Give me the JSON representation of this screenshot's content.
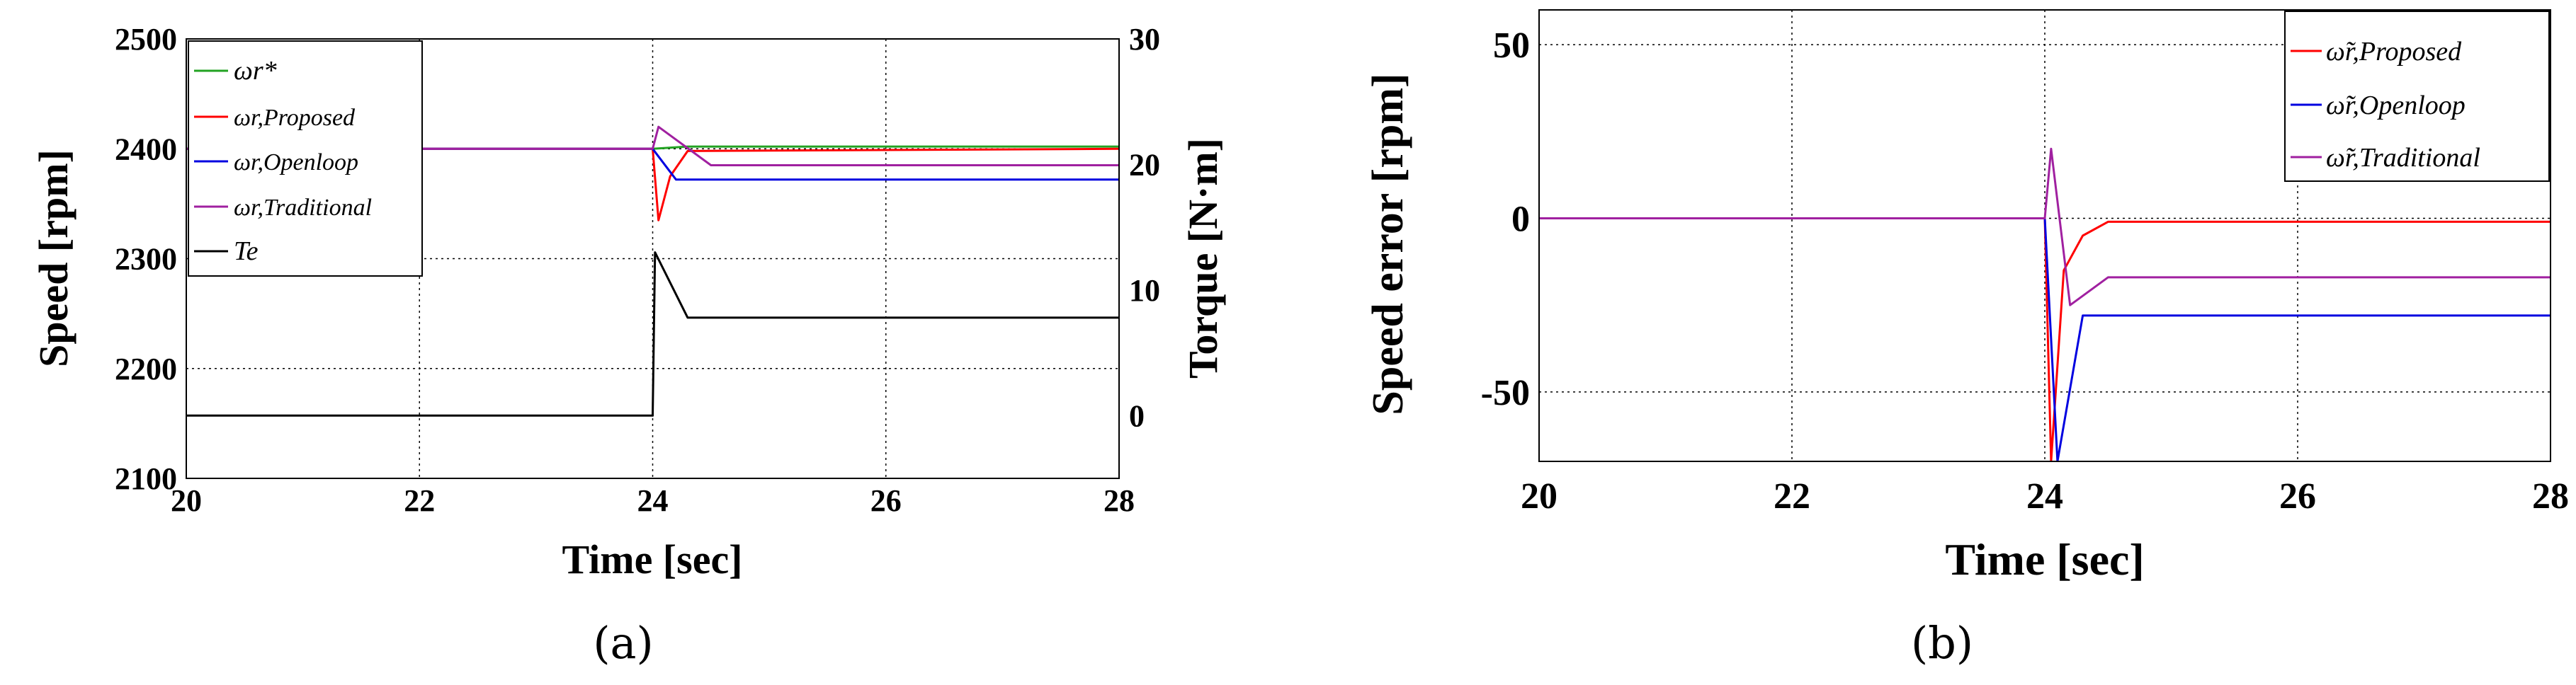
{
  "captions": {
    "a": "(a)",
    "b": "(b)"
  },
  "colors": {
    "ref": "#22a322",
    "proposed": "#ff0000",
    "openloop": "#0000e0",
    "traditional": "#a020a0",
    "torque": "#000000"
  },
  "chart_data": [
    {
      "id": "a",
      "type": "line",
      "xlabel": "Time [sec]",
      "ylabel": "Speed [rpm]",
      "y2label": "Torque [N·m]",
      "xlim": [
        20,
        28
      ],
      "ylim": [
        2100,
        2500
      ],
      "y2lim": [
        -5,
        30
      ],
      "xticks": [
        "20",
        "22",
        "24",
        "26",
        "28"
      ],
      "yticks": [
        "2100",
        "2200",
        "2300",
        "2400",
        "2500"
      ],
      "y2ticks": [
        "0",
        "10",
        "20",
        "30"
      ],
      "grid": true,
      "legend_position": "top-left",
      "legend": [
        "ωr*",
        "ωr,Proposed",
        "ωr,Openloop",
        "ωr,Traditional",
        "Te"
      ],
      "series": [
        {
          "name": "ωr*",
          "color": "ref",
          "axis": "left",
          "x": [
            20,
            24.0,
            24.3,
            28
          ],
          "values": [
            2400,
            2400,
            2402,
            2402
          ]
        },
        {
          "name": "ωr,Proposed",
          "color": "proposed",
          "axis": "left",
          "x": [
            20,
            24.0,
            24.05,
            24.15,
            24.3,
            28
          ],
          "values": [
            2400,
            2400,
            2335,
            2375,
            2398,
            2400
          ]
        },
        {
          "name": "ωr,Openloop",
          "color": "openloop",
          "axis": "left",
          "x": [
            20,
            24.0,
            24.2,
            28
          ],
          "values": [
            2400,
            2400,
            2372,
            2372
          ]
        },
        {
          "name": "ωr,Traditional",
          "color": "traditional",
          "axis": "left",
          "x": [
            20,
            24.0,
            24.05,
            24.5,
            28
          ],
          "values": [
            2400,
            2400,
            2420,
            2385,
            2385
          ]
        },
        {
          "name": "Te",
          "color": "torque",
          "axis": "right",
          "x": [
            20,
            24.0,
            24.02,
            24.3,
            28
          ],
          "values": [
            0,
            0,
            13,
            7.8,
            7.8
          ]
        }
      ]
    },
    {
      "id": "b",
      "type": "line",
      "xlabel": "Time [sec]",
      "ylabel": "Speed error [rpm]",
      "xlim": [
        20,
        28
      ],
      "ylim": [
        -70,
        60
      ],
      "xticks": [
        "20",
        "22",
        "24",
        "26",
        "28"
      ],
      "yticks": [
        "-50",
        "0",
        "50"
      ],
      "ytick_values": [
        -50,
        0,
        50
      ],
      "grid": true,
      "legend_position": "top-right",
      "legend": [
        "ω̃r,Proposed",
        "ω̃r,Openloop",
        "ω̃r,Traditional"
      ],
      "series": [
        {
          "name": "ω̃r,Proposed",
          "color": "proposed",
          "x": [
            20,
            24.0,
            24.05,
            24.15,
            24.3,
            24.5,
            28
          ],
          "values": [
            0,
            0,
            -70,
            -15,
            -5,
            -1,
            -1
          ]
        },
        {
          "name": "ω̃r,Openloop",
          "color": "openloop",
          "x": [
            20,
            24.0,
            24.1,
            24.3,
            28
          ],
          "values": [
            0,
            0,
            -70,
            -28,
            -28
          ]
        },
        {
          "name": "ω̃r,Traditional",
          "color": "traditional",
          "x": [
            20,
            24.0,
            24.05,
            24.2,
            24.5,
            28
          ],
          "values": [
            0,
            0,
            20,
            -25,
            -17,
            -17
          ]
        }
      ]
    }
  ]
}
